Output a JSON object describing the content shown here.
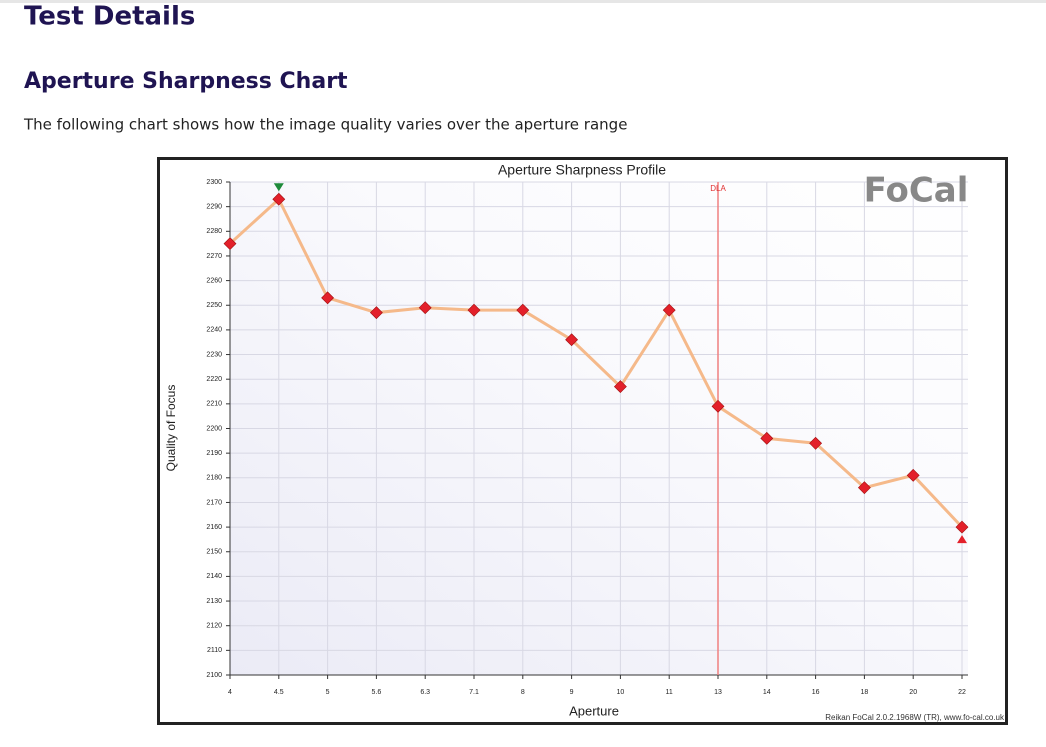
{
  "header": {
    "title": "Test Details",
    "subtitle": "Aperture Sharpness Chart",
    "description": "The following chart shows how the image quality varies over the aperture range"
  },
  "chart_data": {
    "type": "line",
    "title": "Aperture Sharpness Profile",
    "x_label": "Aperture",
    "y_label": "Quality of Focus",
    "categories": [
      "4",
      "4.5",
      "5",
      "5.6",
      "6.3",
      "7.1",
      "8",
      "9",
      "10",
      "11",
      "13",
      "14",
      "16",
      "18",
      "20",
      "22"
    ],
    "series": [
      {
        "name": "Quality of Focus",
        "color": "#f5b98a",
        "marker_color": "#e3202a",
        "values": [
          2275,
          2293,
          2253,
          2247,
          2249,
          2248,
          2248,
          2236,
          2217,
          2248,
          2209,
          2196,
          2194,
          2176,
          2181,
          2160
        ]
      }
    ],
    "ylim": [
      2100,
      2300
    ],
    "yticks": [
      2100,
      2110,
      2120,
      2130,
      2140,
      2150,
      2160,
      2170,
      2180,
      2190,
      2200,
      2210,
      2220,
      2230,
      2240,
      2250,
      2260,
      2270,
      2280,
      2290,
      2300
    ],
    "grid": true,
    "annotation": {
      "text": "DLA",
      "x": "13",
      "color": "#f08080"
    },
    "logo": "FoCal",
    "footer": "Reikan FoCal 2.0.2.1968W (TR), www.fo-cal.co.uk"
  }
}
